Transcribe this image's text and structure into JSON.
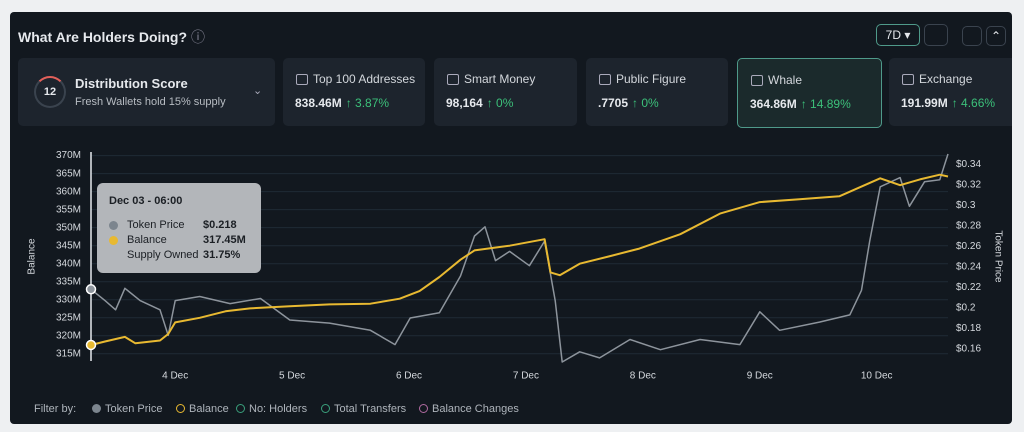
{
  "header": {
    "title": "What Are Holders Doing?",
    "range": "7D"
  },
  "score": {
    "value": "12",
    "label": "Distribution Score",
    "note": "Fresh Wallets hold 15% supply"
  },
  "cards": [
    {
      "label": "Top 100 Addresses",
      "value": "838.46M",
      "change": "↑ 3.87%"
    },
    {
      "label": "Smart Money",
      "value": "98,164",
      "change": "↑ 0%"
    },
    {
      "label": "Public Figure",
      "value": ".7705",
      "change": "↑ 0%"
    },
    {
      "label": "Whale",
      "value": "364.86M",
      "change": "↑ 14.89%"
    },
    {
      "label": "Exchange",
      "value": "191.99M",
      "change": "↑ 4.66%"
    }
  ],
  "tooltip": {
    "title": "Dec 03 - 06:00",
    "rows": [
      [
        "Token Price",
        "$0.218"
      ],
      [
        "Balance",
        "317.45M"
      ],
      [
        "Supply Owned",
        "31.75%"
      ]
    ]
  },
  "filters": {
    "label": "Filter by:",
    "items": [
      "Token Price",
      "Balance",
      "No: Holders",
      "Total Transfers",
      "Balance Changes"
    ]
  },
  "chart_data": {
    "type": "line",
    "ylabel": "Balance",
    "y2label": "Token Price",
    "grid": true,
    "xlim": [
      -0.72,
      6.61
    ],
    "xticks": [
      {
        "value": 0,
        "label": "4 Dec"
      },
      {
        "value": 1,
        "label": "5 Dec"
      },
      {
        "value": 2,
        "label": "6 Dec"
      },
      {
        "value": 3,
        "label": "7 Dec"
      },
      {
        "value": 4,
        "label": "8 Dec"
      },
      {
        "value": 5,
        "label": "9 Dec"
      },
      {
        "value": 6,
        "label": "10 Dec"
      }
    ],
    "ylim": [
      313,
      371
    ],
    "yticks": [
      {
        "value": 315,
        "label": "315M"
      },
      {
        "value": 320,
        "label": "320M"
      },
      {
        "value": 325,
        "label": "325M"
      },
      {
        "value": 330,
        "label": "330M"
      },
      {
        "value": 335,
        "label": "335M"
      },
      {
        "value": 340,
        "label": "340M"
      },
      {
        "value": 345,
        "label": "345M"
      },
      {
        "value": 350,
        "label": "350M"
      },
      {
        "value": 355,
        "label": "355M"
      },
      {
        "value": 360,
        "label": "360M"
      },
      {
        "value": 365,
        "label": "365M"
      },
      {
        "value": 370,
        "label": "370M"
      }
    ],
    "y2lim": [
      0.148,
      0.352
    ],
    "y2ticks": [
      {
        "value": 0.16,
        "label": "$0.16"
      },
      {
        "value": 0.18,
        "label": "$0.18"
      },
      {
        "value": 0.2,
        "label": "$0.2"
      },
      {
        "value": 0.22,
        "label": "$0.22"
      },
      {
        "value": 0.24,
        "label": "$0.24"
      },
      {
        "value": 0.26,
        "label": "$0.26"
      },
      {
        "value": 0.28,
        "label": "$0.28"
      },
      {
        "value": 0.3,
        "label": "$0.3"
      },
      {
        "value": 0.32,
        "label": "$0.32"
      },
      {
        "value": 0.34,
        "label": "$0.34"
      }
    ],
    "series": [
      {
        "name": "Token Price",
        "color": "#8d949c",
        "axis": "y2",
        "x": [
          -0.72,
          -0.6,
          -0.51,
          -0.43,
          -0.3,
          -0.13,
          -0.06,
          0,
          0.21,
          0.47,
          0.73,
          0.98,
          1.32,
          1.67,
          1.88,
          2.01,
          2.26,
          2.44,
          2.56,
          2.65,
          2.74,
          2.86,
          3.03,
          3.16,
          3.25,
          3.31,
          3.46,
          3.63,
          3.89,
          4.15,
          4.49,
          4.83,
          5.0,
          5.17,
          5.51,
          5.77,
          5.87,
          5.94,
          6.03,
          6.2,
          6.28,
          6.41,
          6.54,
          6.61
        ],
        "values": [
          0.218,
          0.207,
          0.198,
          0.219,
          0.207,
          0.198,
          0.173,
          0.207,
          0.211,
          0.204,
          0.209,
          0.188,
          0.185,
          0.178,
          0.164,
          0.19,
          0.195,
          0.231,
          0.27,
          0.279,
          0.246,
          0.255,
          0.241,
          0.265,
          0.207,
          0.147,
          0.157,
          0.151,
          0.169,
          0.159,
          0.169,
          0.164,
          0.196,
          0.178,
          0.186,
          0.193,
          0.217,
          0.265,
          0.318,
          0.327,
          0.299,
          0.323,
          0.325,
          0.35
        ]
      },
      {
        "name": "Balance",
        "color": "#e8b931",
        "x": [
          -0.72,
          -0.6,
          -0.43,
          -0.34,
          -0.13,
          -0.06,
          0,
          0.21,
          0.43,
          0.64,
          0.98,
          1.32,
          1.67,
          1.92,
          2.09,
          2.26,
          2.44,
          2.56,
          2.86,
          3.16,
          3.21,
          3.29,
          3.46,
          3.72,
          3.97,
          4.32,
          4.66,
          5.0,
          5.34,
          5.68,
          6.03,
          6.2,
          6.37,
          6.54,
          6.61
        ],
        "values": [
          317.45,
          318.4,
          319.7,
          317.9,
          318.7,
          320.5,
          323.7,
          325.0,
          326.8,
          327.6,
          328.2,
          328.7,
          328.9,
          330.3,
          332.4,
          336.3,
          341.1,
          343.7,
          345.0,
          346.8,
          337.6,
          336.8,
          340.0,
          342.1,
          344.2,
          348.2,
          353.9,
          357.1,
          357.9,
          358.7,
          363.7,
          361.8,
          363.4,
          364.7,
          364.2
        ]
      }
    ]
  }
}
